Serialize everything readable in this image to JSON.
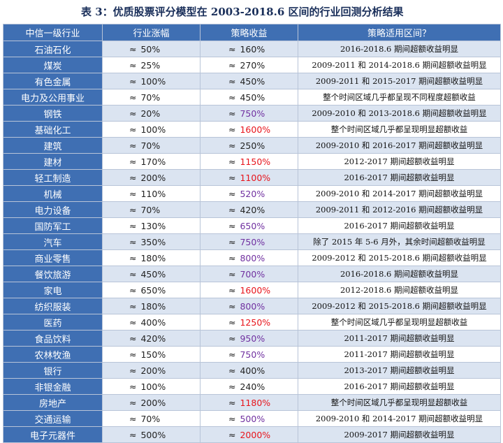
{
  "caption": "表 3：优质股票评分模型在 2003-2018.6 区间的行业回测分析结果",
  "approx_symbol": "≈",
  "colors": {
    "header_bg": "#3f6fb3",
    "band": "#dbe4f1",
    "purple": "#7030a0",
    "red": "#e8141b"
  },
  "headers": [
    "中信一级行业",
    "行业涨幅",
    "策略收益",
    "策略适用区间？"
  ],
  "rows": [
    {
      "industry": "石油石化",
      "rise": "50%",
      "ret": "160%",
      "ret_color": "black",
      "period": "2016-2018.6 期间超额收益明显"
    },
    {
      "industry": "煤炭",
      "rise": "25%",
      "ret": "270%",
      "ret_color": "black",
      "period": "2009-2011 和 2014-2018.6 期间超额收益明显"
    },
    {
      "industry": "有色金属",
      "rise": "100%",
      "ret": "450%",
      "ret_color": "black",
      "period": "2009-2011 和 2015-2017 期间超额收益明显"
    },
    {
      "industry": "电力及公用事业",
      "rise": "70%",
      "ret": "450%",
      "ret_color": "black",
      "period": "整个时间区域几乎都呈现不同程度超额收益"
    },
    {
      "industry": "钢铁",
      "rise": "20%",
      "ret": "750%",
      "ret_color": "purple",
      "period": "2009-2010 和 2013-2018.6 期间超额收益明显"
    },
    {
      "industry": "基础化工",
      "rise": "100%",
      "ret": "1600%",
      "ret_color": "red",
      "period": "整个时间区域几乎都呈现明显超额收益"
    },
    {
      "industry": "建筑",
      "rise": "70%",
      "ret": "250%",
      "ret_color": "black",
      "period": "2009-2010 和 2016-2017 期间超额收益明显"
    },
    {
      "industry": "建材",
      "rise": "170%",
      "ret": "1150%",
      "ret_color": "red",
      "period": "2012-2017 期间超额收益明显"
    },
    {
      "industry": "轻工制造",
      "rise": "200%",
      "ret": "1100%",
      "ret_color": "red",
      "period": "2016-2017 期间超额收益明显"
    },
    {
      "industry": "机械",
      "rise": "110%",
      "ret": "520%",
      "ret_color": "purple",
      "period": "2009-2010 和 2014-2017 期间超额收益明显"
    },
    {
      "industry": "电力设备",
      "rise": "70%",
      "ret": "420%",
      "ret_color": "black",
      "period": "2009-2011 和 2012-2016 期间超额收益明显"
    },
    {
      "industry": "国防军工",
      "rise": "130%",
      "ret": "650%",
      "ret_color": "purple",
      "period": "2016-2017 期间超额收益明显"
    },
    {
      "industry": "汽车",
      "rise": "350%",
      "ret": "750%",
      "ret_color": "purple",
      "period": "除了 2015 年 5-6 月外，其余时间超额收益明显"
    },
    {
      "industry": "商业零售",
      "rise": "180%",
      "ret": "800%",
      "ret_color": "purple",
      "period": "2009-2012 和 2015-2018.6 期间超额收益明显"
    },
    {
      "industry": "餐饮旅游",
      "rise": "450%",
      "ret": "700%",
      "ret_color": "purple",
      "period": "2016-2018.6 期间超额收益明显"
    },
    {
      "industry": "家电",
      "rise": "650%",
      "ret": "1600%",
      "ret_color": "red",
      "period": "2012-2018.6 期间超额收益明显"
    },
    {
      "industry": "纺织服装",
      "rise": "180%",
      "ret": "800%",
      "ret_color": "purple",
      "period": "2009-2012 和 2015-2018.6 期间超额收益明显"
    },
    {
      "industry": "医药",
      "rise": "400%",
      "ret": "1250%",
      "ret_color": "red",
      "period": "整个时间区域几乎都呈现明显超额收益"
    },
    {
      "industry": "食品饮料",
      "rise": "420%",
      "ret": "950%",
      "ret_color": "purple",
      "period": "2011-2017 期间超额收益明显"
    },
    {
      "industry": "农林牧渔",
      "rise": "150%",
      "ret": "750%",
      "ret_color": "purple",
      "period": "2011-2017 期间超额收益明显"
    },
    {
      "industry": "银行",
      "rise": "200%",
      "ret": "400%",
      "ret_color": "black",
      "period": "2013-2017 期间超额收益明显"
    },
    {
      "industry": "非银金融",
      "rise": "100%",
      "ret": "240%",
      "ret_color": "black",
      "period": "2016-2017 期间超额收益明显"
    },
    {
      "industry": "房地产",
      "rise": "200%",
      "ret": "1180%",
      "ret_color": "red",
      "period": "整个时间区域几乎都呈现明显超额收益"
    },
    {
      "industry": "交通运输",
      "rise": "70%",
      "ret": "500%",
      "ret_color": "purple",
      "period": "2009-2010 和 2014-2017 期间超额收益明显"
    },
    {
      "industry": "电子元器件",
      "rise": "500%",
      "ret": "2000%",
      "ret_color": "red",
      "period": "2009-2017 期间超额收益明显"
    }
  ]
}
